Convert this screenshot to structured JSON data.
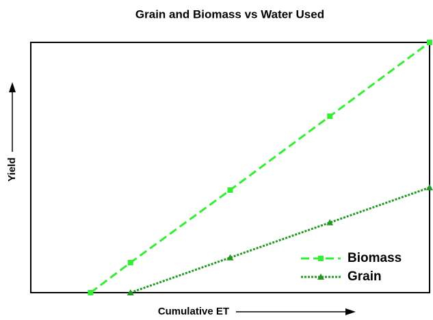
{
  "chart_data": {
    "type": "line",
    "title": "Grain and Biomass vs Water Used",
    "x_label": "Cumulative ET",
    "y_label": "Yield",
    "xlim": [
      0,
      10
    ],
    "ylim": [
      0,
      10
    ],
    "legend": "lower right",
    "series": [
      {
        "name": "Biomass",
        "color": "#33ee33",
        "style": "dashed",
        "marker": "square",
        "x": [
          1.5,
          2.5,
          5,
          7.5,
          10
        ],
        "values": [
          0,
          1.2,
          4.1,
          7.05,
          10
        ]
      },
      {
        "name": "Grain",
        "color": "#229922",
        "style": "dotted",
        "marker": "triangle",
        "x": [
          2.5,
          5,
          7.5,
          10
        ],
        "values": [
          0,
          1.4,
          2.8,
          4.2
        ]
      }
    ]
  }
}
